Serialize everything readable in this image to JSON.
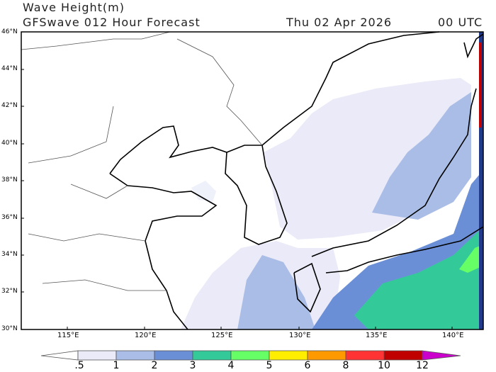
{
  "header": {
    "title": "Wave Height(m)",
    "subtitle": "GFSwave 012 Hour Forecast",
    "date": "Thu 02 Apr 2026",
    "time": "00 UTC"
  },
  "map": {
    "lat_labels": [
      "46°N",
      "44°N",
      "42°N",
      "40°N",
      "38°N",
      "36°N",
      "34°N",
      "32°N",
      "30°N"
    ],
    "lon_labels": [
      "115°E",
      "120°E",
      "125°E",
      "130°E",
      "135°E",
      "140°E"
    ]
  },
  "colorbar": {
    "labels": [
      ".5",
      "1",
      "2",
      "3",
      "4",
      "5",
      "6",
      "8",
      "10",
      "12"
    ],
    "colors": [
      "#ffffff",
      "#eaeaf8",
      "#a9bde6",
      "#6b8fd6",
      "#33c998",
      "#66ff66",
      "#ffee00",
      "#ff9900",
      "#ff3333",
      "#c00000",
      "#cc00cc"
    ]
  }
}
